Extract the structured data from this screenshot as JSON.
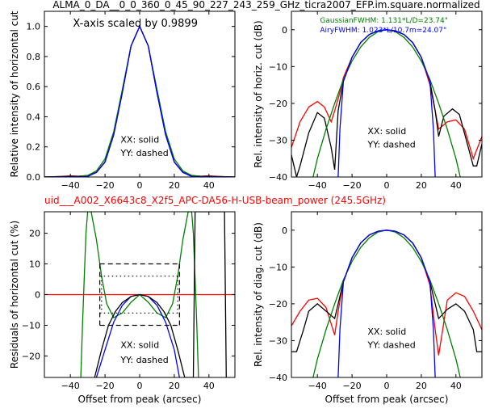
{
  "figure": {
    "title": "ALMA_0_DA__0_0_360_0_45_90_227_243_259_GHz_ticra2007_EFP.im.square.normalized",
    "subtitle": "uid___A002_X6643c8_X2f5_APC-DA56-H-USB-beam_power (245.5GHz)",
    "subtitle_color": "#ff0000"
  },
  "chart_data": [
    {
      "type": "line",
      "title": "",
      "xlabel": "",
      "ylabel": "Relative intensity of horizontal cut",
      "xlim": [
        -55,
        55
      ],
      "ylim": [
        0,
        1.1
      ],
      "xticks": [
        -40,
        -20,
        0,
        20,
        40
      ],
      "yticks": [
        0.0,
        0.2,
        0.4,
        0.6,
        0.8,
        1.0
      ],
      "annotations": [
        "X-axis scaled by 0.9899",
        "XX: solid",
        "YY: dashed"
      ],
      "series": [
        {
          "color": "#ff0000",
          "x": [
            -55,
            -45,
            -40,
            -35,
            -30,
            -25,
            -20,
            -15,
            -10,
            -5,
            0,
            5,
            10,
            15,
            20,
            25,
            30,
            35,
            40,
            45,
            55
          ],
          "y": [
            0.0,
            0.004,
            0.007,
            0.006,
            0.01,
            0.03,
            0.1,
            0.28,
            0.56,
            0.87,
            1.0,
            0.87,
            0.56,
            0.28,
            0.1,
            0.03,
            0.01,
            0.006,
            0.007,
            0.004,
            0.0
          ]
        },
        {
          "color": "#000000",
          "x": [
            -55,
            -45,
            -40,
            -35,
            -30,
            -25,
            -20,
            -15,
            -10,
            -5,
            0,
            5,
            10,
            15,
            20,
            25,
            30,
            35,
            40,
            45,
            55
          ],
          "y": [
            0.0,
            0.003,
            0.005,
            0.005,
            0.01,
            0.03,
            0.1,
            0.28,
            0.56,
            0.87,
            1.0,
            0.87,
            0.56,
            0.28,
            0.1,
            0.03,
            0.01,
            0.005,
            0.005,
            0.003,
            0.0
          ]
        },
        {
          "color": "#008000",
          "x": [
            -55,
            -40,
            -30,
            -25,
            -20,
            -15,
            -10,
            -5,
            0,
            5,
            10,
            15,
            20,
            25,
            30,
            40,
            55
          ],
          "y": [
            0.0,
            0.0,
            0.01,
            0.04,
            0.12,
            0.3,
            0.58,
            0.87,
            1.0,
            0.87,
            0.58,
            0.3,
            0.12,
            0.04,
            0.01,
            0.0,
            0.0
          ]
        },
        {
          "color": "#0000ff",
          "x": [
            -55,
            -30,
            -25,
            -20,
            -15,
            -10,
            -5,
            0,
            5,
            10,
            15,
            20,
            25,
            30,
            55
          ],
          "y": [
            0.0,
            0.003,
            0.03,
            0.1,
            0.28,
            0.56,
            0.87,
            1.0,
            0.87,
            0.56,
            0.28,
            0.1,
            0.03,
            0.003,
            0.0
          ]
        }
      ]
    },
    {
      "type": "line",
      "title": "",
      "xlabel": "",
      "ylabel": "Rel. intensity of horiz. cut (dB)",
      "xlim": [
        -55,
        55
      ],
      "ylim": [
        -40,
        5
      ],
      "xticks": [
        -40,
        -20,
        0,
        20,
        40
      ],
      "yticks": [
        0,
        -10,
        -20,
        -30,
        -40
      ],
      "annotations": [
        "GaussianFWHM: 1.131*L/D=23.74\"",
        "AiryFWHM: 1.023*L/10.7m=24.07\"",
        "XX: solid",
        "YY: dashed"
      ],
      "annotation_colors": [
        "#008000",
        "#0000ff",
        "#000000",
        "#000000"
      ],
      "series": [
        {
          "color": "#ff0000",
          "x": [
            -55,
            -50,
            -45,
            -40,
            -36,
            -32,
            -30,
            -27,
            -25,
            -20,
            -15,
            -10,
            -5,
            0,
            5,
            10,
            15,
            20,
            25,
            28,
            30,
            35,
            40,
            45,
            50,
            55
          ],
          "y": [
            -32,
            -25,
            -21,
            -19.5,
            -21,
            -25,
            -22,
            -17,
            -13,
            -7.5,
            -3.5,
            -1.3,
            -0.3,
            0,
            -0.3,
            -1.3,
            -3.5,
            -7.5,
            -15,
            -22,
            -27,
            -25,
            -24.5,
            -27,
            -35,
            -29
          ]
        },
        {
          "color": "#000000",
          "x": [
            -55,
            -52,
            -50,
            -45,
            -40,
            -36,
            -32,
            -30,
            -28,
            -25,
            -20,
            -15,
            -10,
            -5,
            0,
            5,
            10,
            15,
            20,
            25,
            28,
            30,
            33,
            38,
            42,
            46,
            50,
            52,
            55
          ],
          "y": [
            -34,
            -40,
            -37,
            -28,
            -22.5,
            -24,
            -32,
            -38,
            -22,
            -14,
            -7.5,
            -3.5,
            -1.3,
            -0.3,
            0,
            -0.3,
            -1.3,
            -3.5,
            -7.5,
            -14,
            -22,
            -29,
            -23.5,
            -21.5,
            -23,
            -30,
            -37,
            -37,
            -31
          ]
        },
        {
          "color": "#008000",
          "x": [
            -55,
            -45,
            -40,
            -35,
            -30,
            -25,
            -20,
            -15,
            -10,
            -5,
            0,
            5,
            10,
            15,
            20,
            25,
            30,
            35,
            40,
            45,
            55
          ],
          "y": [
            -52,
            -45,
            -35,
            -27,
            -20,
            -13.5,
            -8.5,
            -4.7,
            -2.1,
            -0.5,
            0,
            -0.5,
            -2.1,
            -4.7,
            -8.5,
            -13.5,
            -20,
            -27,
            -35,
            -45,
            -52
          ]
        },
        {
          "color": "#0000ff",
          "x": [
            -28,
            -27,
            -25,
            -20,
            -15,
            -10,
            -5,
            0,
            5,
            10,
            15,
            20,
            25,
            27,
            28
          ],
          "y": [
            -40,
            -27,
            -14,
            -7.5,
            -3.5,
            -1.3,
            -0.3,
            0,
            -0.3,
            -1.3,
            -3.5,
            -7.5,
            -14,
            -27,
            -40
          ]
        }
      ]
    },
    {
      "type": "line",
      "title": "",
      "xlabel": "Offset from peak (arcsec)",
      "ylabel": "Residuals of horizontal cut (%)",
      "xlim": [
        -55,
        55
      ],
      "ylim": [
        -27,
        27
      ],
      "xticks": [
        -40,
        -20,
        0,
        20,
        40
      ],
      "yticks": [
        -20,
        -10,
        0,
        10,
        20
      ],
      "annotations": [
        "XX: solid",
        "YY: dashed"
      ],
      "series": [
        {
          "color": "#ff0000",
          "x": [
            -55,
            55
          ],
          "y": [
            0,
            0
          ]
        },
        {
          "color": "#008000",
          "x": [
            -34,
            -33,
            -32,
            -31,
            -30,
            -28,
            -25,
            -22,
            -19,
            -15,
            -10,
            -5,
            0,
            5,
            10,
            15,
            19,
            22,
            25,
            28,
            30,
            31,
            32,
            33,
            34
          ],
          "y": [
            -27,
            -10,
            5,
            20,
            27,
            27,
            18,
            6,
            -3,
            -7.5,
            -6,
            -2.5,
            0,
            -2.5,
            -6,
            -7.5,
            -3,
            6,
            18,
            27,
            27,
            20,
            5,
            -10,
            -27
          ]
        },
        {
          "color": "#0000ff",
          "x": [
            -25,
            -20,
            -15,
            -10,
            -5,
            0,
            5,
            10,
            15,
            20,
            23
          ],
          "y": [
            -27,
            -18,
            -9,
            -3.5,
            -0.6,
            0,
            -0.6,
            -3.5,
            -9,
            -18,
            -27
          ]
        },
        {
          "color": "#000000",
          "x": [
            -26,
            -22,
            -18,
            -14,
            -10,
            -5,
            0,
            5,
            10,
            14,
            18,
            22,
            26,
            31,
            31.5,
            32,
            49,
            49.5,
            50
          ],
          "y": [
            -27,
            -18,
            -10,
            -5.5,
            -2.6,
            -0.6,
            0,
            -0.6,
            -2.6,
            -5.5,
            -10,
            -18,
            -27,
            -27,
            0,
            27,
            27,
            0,
            -27
          ]
        },
        {
          "color": "#000000",
          "x": [
            -23,
            23
          ],
          "y": [
            10,
            10
          ]
        },
        {
          "color": "#000000",
          "x": [
            -23,
            23
          ],
          "y": [
            -10,
            -10
          ]
        },
        {
          "color": "#000000",
          "x": [
            -23,
            23
          ],
          "y": [
            6,
            6
          ]
        },
        {
          "color": "#000000",
          "x": [
            -23,
            23
          ],
          "y": [
            -6,
            -6
          ]
        }
      ]
    },
    {
      "type": "line",
      "title": "",
      "xlabel": "Offset from peak (arcsec)",
      "ylabel": "Rel. intensity of diag. cut (dB)",
      "xlim": [
        -55,
        55
      ],
      "ylim": [
        -40,
        5
      ],
      "xticks": [
        -40,
        -20,
        0,
        20,
        40
      ],
      "yticks": [
        0,
        -10,
        -20,
        -30,
        -40
      ],
      "annotations": [
        "XX: solid",
        "YY: dashed"
      ],
      "series": [
        {
          "color": "#ff0000",
          "x": [
            -55,
            -50,
            -45,
            -40,
            -35,
            -30,
            -28,
            -25,
            -20,
            -15,
            -10,
            -5,
            0,
            5,
            10,
            15,
            20,
            25,
            28,
            30,
            35,
            40,
            45,
            50,
            55
          ],
          "y": [
            -26,
            -22,
            -19,
            -18.5,
            -21,
            -28.5,
            -22,
            -14,
            -7.5,
            -3.5,
            -1.3,
            -0.3,
            0,
            -0.3,
            -1.3,
            -3.5,
            -7.5,
            -15,
            -27,
            -34,
            -19,
            -17,
            -18,
            -22,
            -27
          ]
        },
        {
          "color": "#000000",
          "x": [
            -55,
            -52,
            -48,
            -45,
            -40,
            -35,
            -30,
            -28,
            -25,
            -20,
            -15,
            -10,
            -5,
            0,
            5,
            10,
            15,
            20,
            25,
            28,
            30,
            35,
            40,
            45,
            50,
            52,
            55
          ],
          "y": [
            -33,
            -33,
            -27,
            -22,
            -20,
            -22,
            -24,
            -20,
            -14,
            -7.5,
            -3.5,
            -1.3,
            -0.3,
            0,
            -0.3,
            -1.3,
            -3.5,
            -7.5,
            -14,
            -20,
            -24,
            -21.5,
            -20,
            -22,
            -27,
            -33,
            -33
          ]
        },
        {
          "color": "#008000",
          "x": [
            -55,
            -45,
            -40,
            -35,
            -30,
            -25,
            -20,
            -15,
            -10,
            -5,
            0,
            5,
            10,
            15,
            20,
            25,
            30,
            35,
            40,
            45,
            55
          ],
          "y": [
            -52,
            -45,
            -35,
            -27,
            -20,
            -13.5,
            -8.5,
            -4.7,
            -2.1,
            -0.5,
            0,
            -0.5,
            -2.1,
            -4.7,
            -8.5,
            -13.5,
            -20,
            -27,
            -35,
            -45,
            -52
          ]
        },
        {
          "color": "#0000ff",
          "x": [
            -28,
            -27,
            -25,
            -20,
            -15,
            -10,
            -5,
            0,
            5,
            10,
            15,
            20,
            25,
            27,
            28
          ],
          "y": [
            -40,
            -27,
            -14,
            -7.5,
            -3.5,
            -1.3,
            -0.3,
            0,
            -0.3,
            -1.3,
            -3.5,
            -7.5,
            -14,
            -27,
            -40
          ]
        }
      ]
    }
  ]
}
